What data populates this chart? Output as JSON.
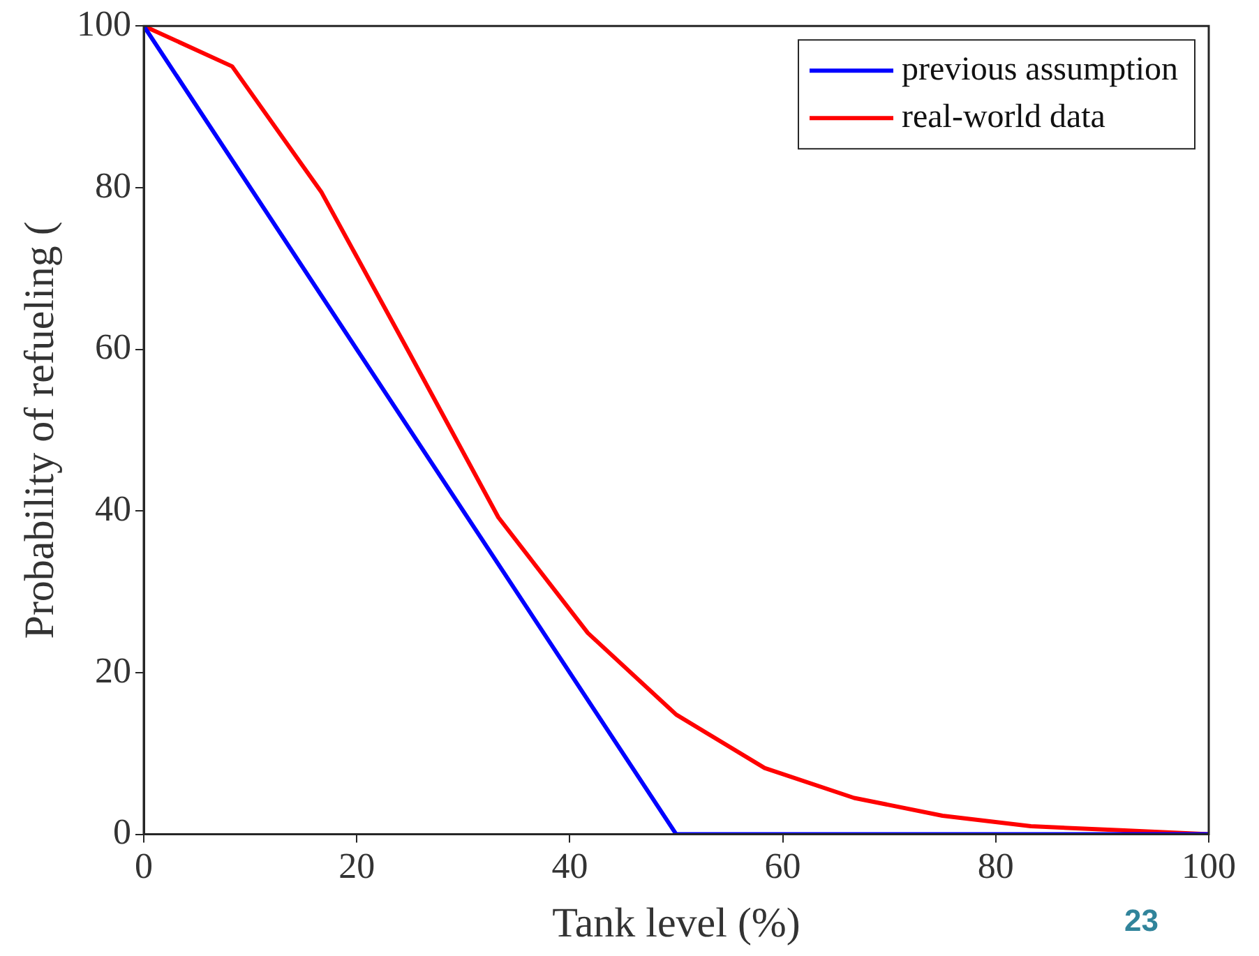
{
  "chart_data": {
    "type": "line",
    "xlabel": "Tank level (%)",
    "ylabel": "Probability of refueling (",
    "xlim": [
      0,
      100
    ],
    "xticks": [
      0,
      20,
      40,
      60,
      80,
      100
    ],
    "ylim": [
      0,
      100
    ],
    "yticks": [
      0,
      20,
      40,
      60,
      80,
      100
    ],
    "grid": false,
    "legend": "top right",
    "marker": "none",
    "line_style": "solid",
    "annotations": [
      "23"
    ],
    "series": [
      {
        "name": "previous assumption",
        "color": "#0000ff",
        "x": [
          0,
          50,
          100
        ],
        "values": [
          100,
          0,
          0
        ]
      },
      {
        "name": "real-world data",
        "color": "#ff0000",
        "x": [
          0,
          8.3,
          16.7,
          25,
          33.3,
          41.7,
          50,
          58.3,
          66.7,
          75,
          83.3,
          91.7,
          100
        ],
        "values": [
          100,
          95,
          79.4,
          59.4,
          39.2,
          24.9,
          14.8,
          8.2,
          4.5,
          2.3,
          1,
          0.5,
          0
        ]
      }
    ]
  }
}
